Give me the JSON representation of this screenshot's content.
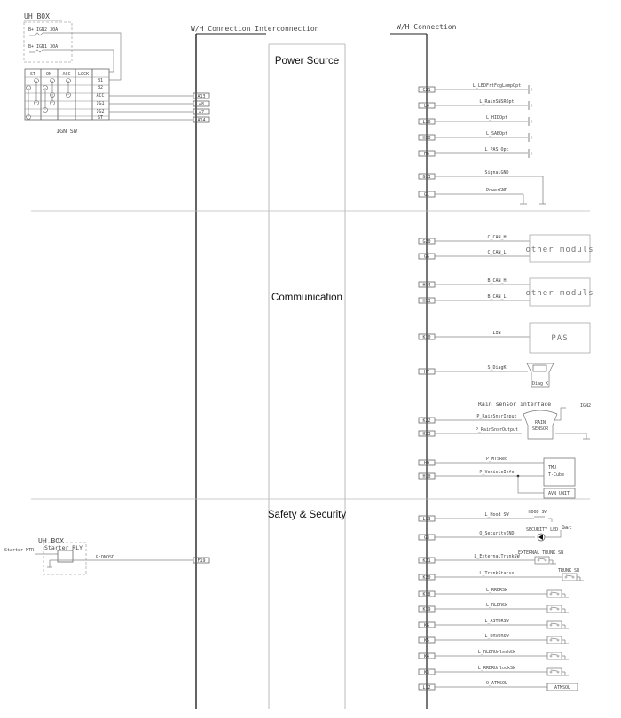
{
  "header": {
    "interconnection": "W/H Connection Interconnection",
    "connection": "W/H Connection"
  },
  "sections": {
    "power": "Power Source",
    "communication": "Communication",
    "safety": "Safety & Security"
  },
  "ign_block": {
    "uh_box": "UH BOX",
    "fuses": [
      "B+ IGN2 30A",
      "B+ IGN1 30A"
    ],
    "columns": [
      "ST",
      "ON",
      "ACC",
      "LOCK"
    ],
    "terminals": [
      "B1",
      "B2",
      "ACC",
      "IG1",
      "IG2",
      "ST"
    ],
    "pins": [
      "A13",
      "A8",
      "A7",
      "A14"
    ],
    "label": "IGN SW"
  },
  "starter_block": {
    "uh_box": "UH BOX",
    "relay": "Starter RLY",
    "motor": "Starter MTR",
    "signal": "P:DNOSD",
    "pin": "F19"
  },
  "power_rows": [
    {
      "pin": "G21",
      "signal": "L_LEDFrtFogLampOpt"
    },
    {
      "pin": "L4",
      "signal": "L_RainSNSROpt"
    },
    {
      "pin": "L16",
      "signal": "L_HIDOpt"
    },
    {
      "pin": "H20",
      "signal": "L_SABOpt"
    },
    {
      "pin": "H6",
      "signal": "L_PAS_Opt"
    },
    {
      "pin": "G13",
      "signal": "SignalGND"
    },
    {
      "pin": "G1",
      "signal": "PowerGND"
    }
  ],
  "comm_rows": [
    {
      "pin": "G20",
      "signal": "C_CAN_H"
    },
    {
      "pin": "G6",
      "signal": "C_CAN_L"
    },
    {
      "pin": "H14",
      "signal": "B_CAN_H"
    },
    {
      "pin": "H13",
      "signal": "B_CAN_L"
    },
    {
      "pin": "K10",
      "signal": "LIN"
    },
    {
      "pin": "H7",
      "signal": "S_DiagK"
    },
    {
      "pin": "K22",
      "signal": "P_RainSnsrInput"
    },
    {
      "pin": "K23",
      "signal": "P_RainSnsrOutput"
    },
    {
      "pin": "H9",
      "signal": "P_MTSReq"
    },
    {
      "pin": "H10",
      "signal": "P_VehicleInfo"
    }
  ],
  "comm_devices": {
    "other_modules_1": "other moduls",
    "other_modules_2": "other moduls",
    "pas": "PAS",
    "diag": "Diag_K",
    "rain_title": "Rain sensor interface",
    "rain_sensor": [
      "RAIN",
      "SENSOR"
    ],
    "ign2": "IGN2",
    "tmu": [
      "TMU",
      "T-Cube"
    ],
    "avn": "AVN UNIT"
  },
  "safety_rows": [
    {
      "pin": "L13",
      "signal": "L_Hood SW"
    },
    {
      "pin": "G3",
      "signal": "O_SecurityIND"
    },
    {
      "pin": "K21",
      "signal": "L_ExternalTrunkSW"
    },
    {
      "pin": "K20",
      "signal": "L_TrunkStatus"
    },
    {
      "pin": "K18",
      "signal": "L_RRDRSW"
    },
    {
      "pin": "K19",
      "signal": "L_RLDRSW"
    },
    {
      "pin": "K6",
      "signal": "L_ASTDRSW"
    },
    {
      "pin": "K5",
      "signal": "L_DRVDRSW"
    },
    {
      "pin": "K4",
      "signal": "L_RLDRUnlockSW"
    },
    {
      "pin": "K3",
      "signal": "L_RRDRUnlockSW"
    },
    {
      "pin": "L12",
      "signal": "O_ATMSOL"
    }
  ],
  "safety_devices": {
    "hood_sw": "HOOD SW",
    "security_led": "SECURITY LED",
    "bat": "Bat",
    "ext_trunk_sw": "EXTERNAL TRUNK SW",
    "trunk_sw": "TRUNK SW",
    "atmsol": "ATMSOL"
  },
  "colors": {
    "wire": "#888888",
    "harness": "#333333",
    "led": "#111111"
  }
}
